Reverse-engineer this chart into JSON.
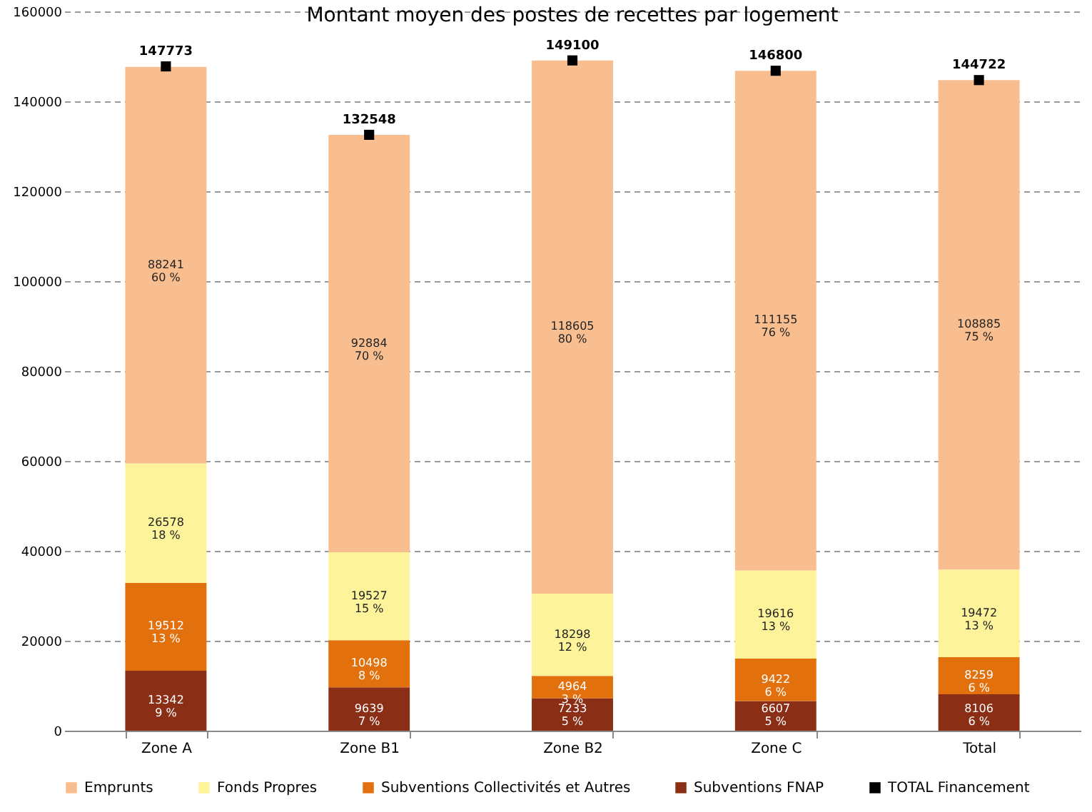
{
  "chart_data": {
    "type": "bar",
    "title": "Montant moyen des postes de recettes par logement",
    "categories": [
      "Zone A",
      "Zone B1",
      "Zone B2",
      "Zone C",
      "Total"
    ],
    "stacked": true,
    "series": [
      {
        "name": "Subventions FNAP",
        "color": "#8b2e16",
        "values": [
          13342,
          9639,
          7233,
          6607,
          8106
        ],
        "value_labels": [
          "13342\n9 %",
          "9639\n7 %",
          "7233\n5 %",
          "6607\n5 %",
          "8106\n6 %"
        ]
      },
      {
        "name": "Subventions Collectivités et Autres",
        "color": "#e2700d",
        "values": [
          19512,
          10498,
          4964,
          9422,
          8259
        ],
        "value_labels": [
          "19512\n13 %",
          "10498\n8 %",
          "4964\n3 %",
          "9422\n6 %",
          "8259\n6 %"
        ]
      },
      {
        "name": "Fonds Propres",
        "color": "#fdf39a",
        "values": [
          26578,
          19527,
          18298,
          19616,
          19472
        ],
        "value_labels": [
          "26578\n18 %",
          "19527\n15 %",
          "18298\n12 %",
          "19616\n13 %",
          "19472\n13 %"
        ]
      },
      {
        "name": "Emprunts",
        "color": "#f8be8f",
        "values": [
          88241,
          92884,
          118605,
          111155,
          108885
        ],
        "value_labels": [
          "88241\n60 %",
          "92884\n70 %",
          "118605\n80 %",
          "111155\n76 %",
          "108885\n75 %"
        ]
      },
      {
        "name": "TOTAL Financement",
        "type": "scatter",
        "marker": "square",
        "color": "#000000",
        "values": [
          147773,
          132548,
          149100,
          146800,
          144722
        ],
        "value_labels": [
          "147773",
          "132548",
          "149100",
          "146800",
          "144722"
        ]
      }
    ],
    "ylim": [
      0,
      160000
    ],
    "yticks": [
      0,
      20000,
      40000,
      60000,
      80000,
      100000,
      120000,
      140000,
      160000
    ],
    "grid": "y",
    "line_style": "dashed",
    "legend": "bottom"
  }
}
